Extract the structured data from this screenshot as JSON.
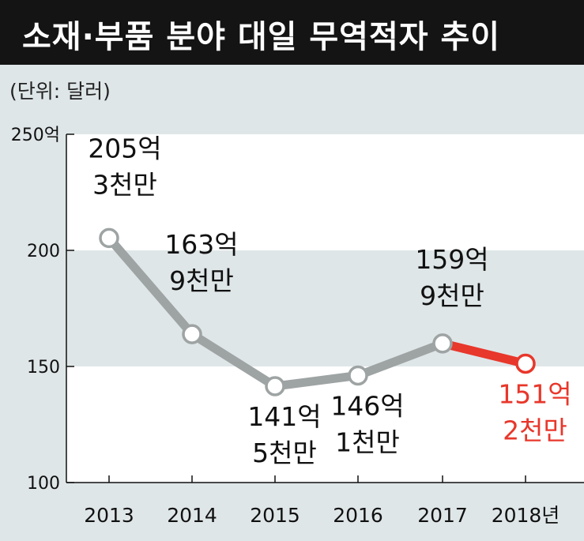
{
  "chart_data": {
    "type": "line",
    "title": "소재·부품 분야 대일 무역적자 추이",
    "unit": "(단위: 달러)",
    "x": [
      "2013",
      "2014",
      "2015",
      "2016",
      "2017",
      "2018년"
    ],
    "values": [
      205.3,
      163.9,
      141.5,
      146.1,
      159.9,
      151.2
    ],
    "data_labels": [
      [
        "205억",
        "3천만"
      ],
      [
        "163억",
        "9천만"
      ],
      [
        "141억",
        "5천만"
      ],
      [
        "146억",
        "1천만"
      ],
      [
        "159억",
        "9천만"
      ],
      [
        "151억",
        "2천만"
      ]
    ],
    "yticks": [
      {
        "value": 250,
        "label": "250억"
      },
      {
        "value": 200,
        "label": "200"
      },
      {
        "value": 150,
        "label": "150"
      },
      {
        "value": 100,
        "label": "100"
      }
    ],
    "ylim": [
      100,
      250
    ],
    "highlight_last": true,
    "colors": {
      "line": "#9ea3a3",
      "highlight": "#e8372b",
      "band_light": "#ffffff",
      "band_shade": "#dfe6e8",
      "text": "#111111",
      "title_bg": "#141414",
      "title_text": "#ffffff"
    }
  }
}
